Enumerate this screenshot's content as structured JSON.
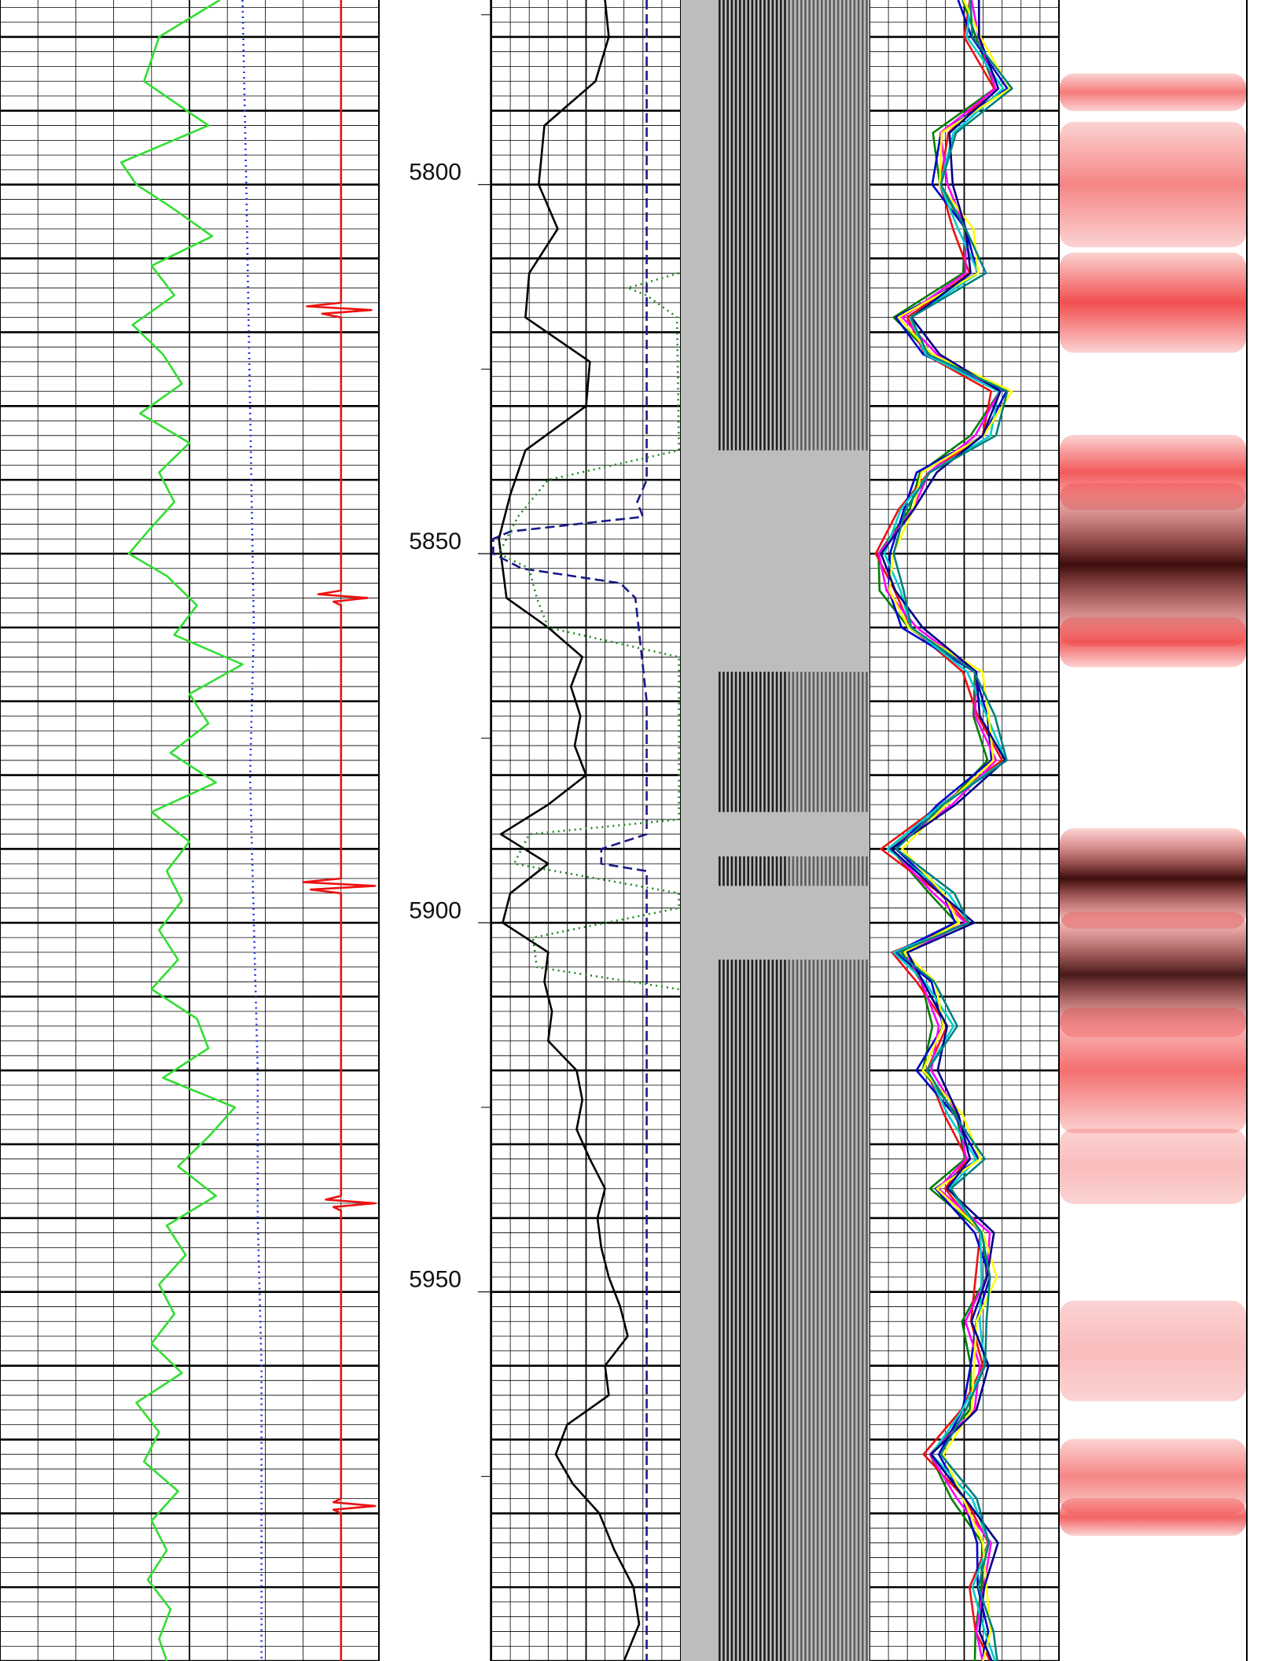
{
  "chart_data": {
    "type": "line",
    "depth_axis": {
      "range": [
        5775,
        6000
      ],
      "tick_labels": [
        "5800",
        "5850",
        "5900",
        "5950"
      ]
    },
    "tracks": [
      {
        "id": "track1",
        "grid": "linear",
        "curves": [
          {
            "style": "solid",
            "color": "#33dd33",
            "points": [
              [
                5775,
                0.58
              ],
              [
                5780,
                0.42
              ],
              [
                5786,
                0.38
              ],
              [
                5792,
                0.55
              ],
              [
                5797,
                0.32
              ],
              [
                5800,
                0.36
              ],
              [
                5803,
                0.45
              ],
              [
                5807,
                0.56
              ],
              [
                5811,
                0.4
              ],
              [
                5815,
                0.46
              ],
              [
                5819,
                0.35
              ],
              [
                5823,
                0.43
              ],
              [
                5827,
                0.48
              ],
              [
                5831,
                0.37
              ],
              [
                5835,
                0.5
              ],
              [
                5839,
                0.42
              ],
              [
                5843,
                0.46
              ],
              [
                5847,
                0.39
              ],
              [
                5850,
                0.34
              ],
              [
                5853,
                0.44
              ],
              [
                5857,
                0.52
              ],
              [
                5861,
                0.46
              ],
              [
                5865,
                0.64
              ],
              [
                5869,
                0.5
              ],
              [
                5873,
                0.55
              ],
              [
                5877,
                0.45
              ],
              [
                5881,
                0.57
              ],
              [
                5885,
                0.4
              ],
              [
                5889,
                0.5
              ],
              [
                5893,
                0.44
              ],
              [
                5897,
                0.48
              ],
              [
                5901,
                0.42
              ],
              [
                5905,
                0.47
              ],
              [
                5909,
                0.4
              ],
              [
                5913,
                0.52
              ],
              [
                5917,
                0.55
              ],
              [
                5921,
                0.43
              ],
              [
                5925,
                0.62
              ],
              [
                5929,
                0.55
              ],
              [
                5933,
                0.47
              ],
              [
                5937,
                0.57
              ],
              [
                5941,
                0.44
              ],
              [
                5945,
                0.49
              ],
              [
                5949,
                0.42
              ],
              [
                5953,
                0.46
              ],
              [
                5957,
                0.4
              ],
              [
                5961,
                0.48
              ],
              [
                5965,
                0.36
              ],
              [
                5969,
                0.42
              ],
              [
                5973,
                0.38
              ],
              [
                5977,
                0.47
              ],
              [
                5981,
                0.4
              ],
              [
                5985,
                0.44
              ],
              [
                5989,
                0.39
              ],
              [
                5993,
                0.45
              ],
              [
                5997,
                0.42
              ],
              [
                6000,
                0.44
              ]
            ]
          },
          {
            "style": "dotted",
            "color": "#2233dd",
            "points": [
              [
                5775,
                0.64
              ],
              [
                5800,
                0.65
              ],
              [
                5830,
                0.66
              ],
              [
                5860,
                0.67
              ],
              [
                5880,
                0.66
              ],
              [
                5900,
                0.67
              ],
              [
                5920,
                0.68
              ],
              [
                5940,
                0.68
              ],
              [
                5960,
                0.69
              ],
              [
                5980,
                0.69
              ],
              [
                6000,
                0.69
              ]
            ]
          },
          {
            "style": "solid",
            "color": "#ee1111",
            "points": [
              [
                5775,
                0.9
              ],
              [
                5816,
                0.9
              ],
              [
                5816.5,
                0.81
              ],
              [
                5817,
                0.98
              ],
              [
                5817.5,
                0.85
              ],
              [
                5818,
                0.9
              ],
              [
                5855,
                0.9
              ],
              [
                5855.5,
                0.84
              ],
              [
                5856,
                0.97
              ],
              [
                5856.5,
                0.88
              ],
              [
                5857,
                0.9
              ],
              [
                5894,
                0.9
              ],
              [
                5894.5,
                0.8
              ],
              [
                5895,
                0.99
              ],
              [
                5895.5,
                0.82
              ],
              [
                5896,
                0.9
              ],
              [
                5937,
                0.9
              ],
              [
                5937.5,
                0.86
              ],
              [
                5938,
                0.99
              ],
              [
                5938.5,
                0.88
              ],
              [
                5939,
                0.9
              ],
              [
                5978,
                0.9
              ],
              [
                5978.5,
                0.88
              ],
              [
                5979,
                0.99
              ],
              [
                5979.5,
                0.88
              ],
              [
                5980,
                0.9
              ],
              [
                6000,
                0.9
              ]
            ]
          }
        ]
      },
      {
        "id": "track2",
        "grid": "linear",
        "curves": [
          {
            "style": "solid",
            "color": "#000000",
            "points": [
              [
                5775,
                0.6
              ],
              [
                5780,
                0.62
              ],
              [
                5786,
                0.55
              ],
              [
                5792,
                0.28
              ],
              [
                5800,
                0.25
              ],
              [
                5806,
                0.35
              ],
              [
                5812,
                0.2
              ],
              [
                5818,
                0.18
              ],
              [
                5824,
                0.52
              ],
              [
                5830,
                0.5
              ],
              [
                5836,
                0.18
              ],
              [
                5842,
                0.1
              ],
              [
                5848,
                0.04
              ],
              [
                5852,
                0.06
              ],
              [
                5856,
                0.08
              ],
              [
                5860,
                0.3
              ],
              [
                5864,
                0.48
              ],
              [
                5868,
                0.42
              ],
              [
                5872,
                0.47
              ],
              [
                5876,
                0.44
              ],
              [
                5880,
                0.5
              ],
              [
                5884,
                0.3
              ],
              [
                5888,
                0.05
              ],
              [
                5892,
                0.3
              ],
              [
                5896,
                0.1
              ],
              [
                5900,
                0.06
              ],
              [
                5904,
                0.3
              ],
              [
                5908,
                0.28
              ],
              [
                5912,
                0.32
              ],
              [
                5916,
                0.3
              ],
              [
                5920,
                0.45
              ],
              [
                5924,
                0.48
              ],
              [
                5928,
                0.45
              ],
              [
                5932,
                0.52
              ],
              [
                5936,
                0.6
              ],
              [
                5940,
                0.56
              ],
              [
                5944,
                0.58
              ],
              [
                5948,
                0.62
              ],
              [
                5952,
                0.68
              ],
              [
                5956,
                0.72
              ],
              [
                5960,
                0.6
              ],
              [
                5964,
                0.62
              ],
              [
                5968,
                0.4
              ],
              [
                5972,
                0.34
              ],
              [
                5976,
                0.43
              ],
              [
                5980,
                0.57
              ],
              [
                5985,
                0.65
              ],
              [
                5990,
                0.75
              ],
              [
                5995,
                0.78
              ],
              [
                6000,
                0.7
              ]
            ]
          },
          {
            "style": "dashed",
            "color": "#1a1a88",
            "points": [
              [
                5775,
                0.82
              ],
              [
                5840,
                0.82
              ],
              [
                5843,
                0.77
              ],
              [
                5845,
                0.8
              ],
              [
                5847,
                0.1
              ],
              [
                5848,
                0.01
              ],
              [
                5850,
                0.01
              ],
              [
                5852,
                0.16
              ],
              [
                5854,
                0.68
              ],
              [
                5856,
                0.76
              ],
              [
                5870,
                0.82
              ],
              [
                5888,
                0.82
              ],
              [
                5890,
                0.58
              ],
              [
                5892,
                0.58
              ],
              [
                5893,
                0.82
              ],
              [
                6000,
                0.82
              ]
            ]
          },
          {
            "style": "dotted",
            "color": "#228822",
            "points": [
              [
                5812,
                0.99
              ],
              [
                5814,
                0.72
              ],
              [
                5815,
                0.82
              ],
              [
                5818,
                0.98
              ],
              [
                5836,
                0.99
              ],
              [
                5840,
                0.3
              ],
              [
                5845,
                0.14
              ],
              [
                5850,
                0.04
              ],
              [
                5852,
                0.2
              ],
              [
                5856,
                0.24
              ],
              [
                5860,
                0.3
              ],
              [
                5864,
                0.99
              ],
              [
                5886,
                0.99
              ],
              [
                5888,
                0.2
              ],
              [
                5892,
                0.12
              ],
              [
                5896,
                0.99
              ],
              [
                5898,
                0.99
              ],
              [
                5902,
                0.22
              ],
              [
                5906,
                0.24
              ],
              [
                5909,
                0.99
              ]
            ]
          }
        ]
      },
      {
        "id": "track3",
        "type": "waveform_density",
        "colors": {
          "background": "#bdbdbd",
          "wave": "#111111"
        }
      },
      {
        "id": "track4",
        "grid": "linear",
        "curves": [
          {
            "style": "solid",
            "color": "#008000"
          },
          {
            "style": "solid",
            "color": "#ee1111"
          },
          {
            "style": "solid",
            "color": "#0000cc"
          },
          {
            "style": "solid",
            "color": "#ff00ff"
          },
          {
            "style": "solid",
            "color": "#00cccc"
          },
          {
            "style": "solid",
            "color": "#ffff00"
          },
          {
            "style": "solid",
            "color": "#000088"
          },
          {
            "style": "solid",
            "color": "#008080"
          }
        ],
        "base_points": [
          [
            5775,
            0.52
          ],
          [
            5780,
            0.55
          ],
          [
            5787,
            0.7
          ],
          [
            5793,
            0.4
          ],
          [
            5800,
            0.38
          ],
          [
            5806,
            0.5
          ],
          [
            5812,
            0.55
          ],
          [
            5818,
            0.18
          ],
          [
            5823,
            0.32
          ],
          [
            5828,
            0.7
          ],
          [
            5834,
            0.6
          ],
          [
            5839,
            0.3
          ],
          [
            5844,
            0.2
          ],
          [
            5850,
            0.08
          ],
          [
            5855,
            0.12
          ],
          [
            5860,
            0.22
          ],
          [
            5866,
            0.55
          ],
          [
            5872,
            0.6
          ],
          [
            5878,
            0.68
          ],
          [
            5884,
            0.4
          ],
          [
            5890,
            0.12
          ],
          [
            5896,
            0.38
          ],
          [
            5900,
            0.5
          ],
          [
            5904,
            0.16
          ],
          [
            5908,
            0.3
          ],
          [
            5914,
            0.4
          ],
          [
            5920,
            0.3
          ],
          [
            5926,
            0.45
          ],
          [
            5932,
            0.55
          ],
          [
            5936,
            0.38
          ],
          [
            5942,
            0.6
          ],
          [
            5948,
            0.62
          ],
          [
            5954,
            0.55
          ],
          [
            5960,
            0.58
          ],
          [
            5966,
            0.52
          ],
          [
            5972,
            0.34
          ],
          [
            5978,
            0.5
          ],
          [
            5984,
            0.62
          ],
          [
            5990,
            0.58
          ],
          [
            5996,
            0.6
          ],
          [
            6000,
            0.62
          ]
        ]
      },
      {
        "id": "track5",
        "type": "red_density",
        "colors": {
          "low": "#ffffff",
          "mid": "#ee2222",
          "high": "#330000"
        },
        "bands": [
          [
            5786,
            5789,
            0.6
          ],
          [
            5795,
            5805,
            0.55
          ],
          [
            5812,
            5820,
            0.8
          ],
          [
            5836,
            5842,
            0.75
          ],
          [
            5845,
            5858,
            0.95
          ],
          [
            5860,
            5864,
            0.7
          ],
          [
            5890,
            5898,
            0.95
          ],
          [
            5902,
            5912,
            0.9
          ],
          [
            5915,
            5925,
            0.65
          ],
          [
            5930,
            5936,
            0.3
          ],
          [
            5954,
            5962,
            0.3
          ],
          [
            5972,
            5978,
            0.55
          ],
          [
            5979,
            5982,
            0.7
          ]
        ]
      }
    ]
  }
}
